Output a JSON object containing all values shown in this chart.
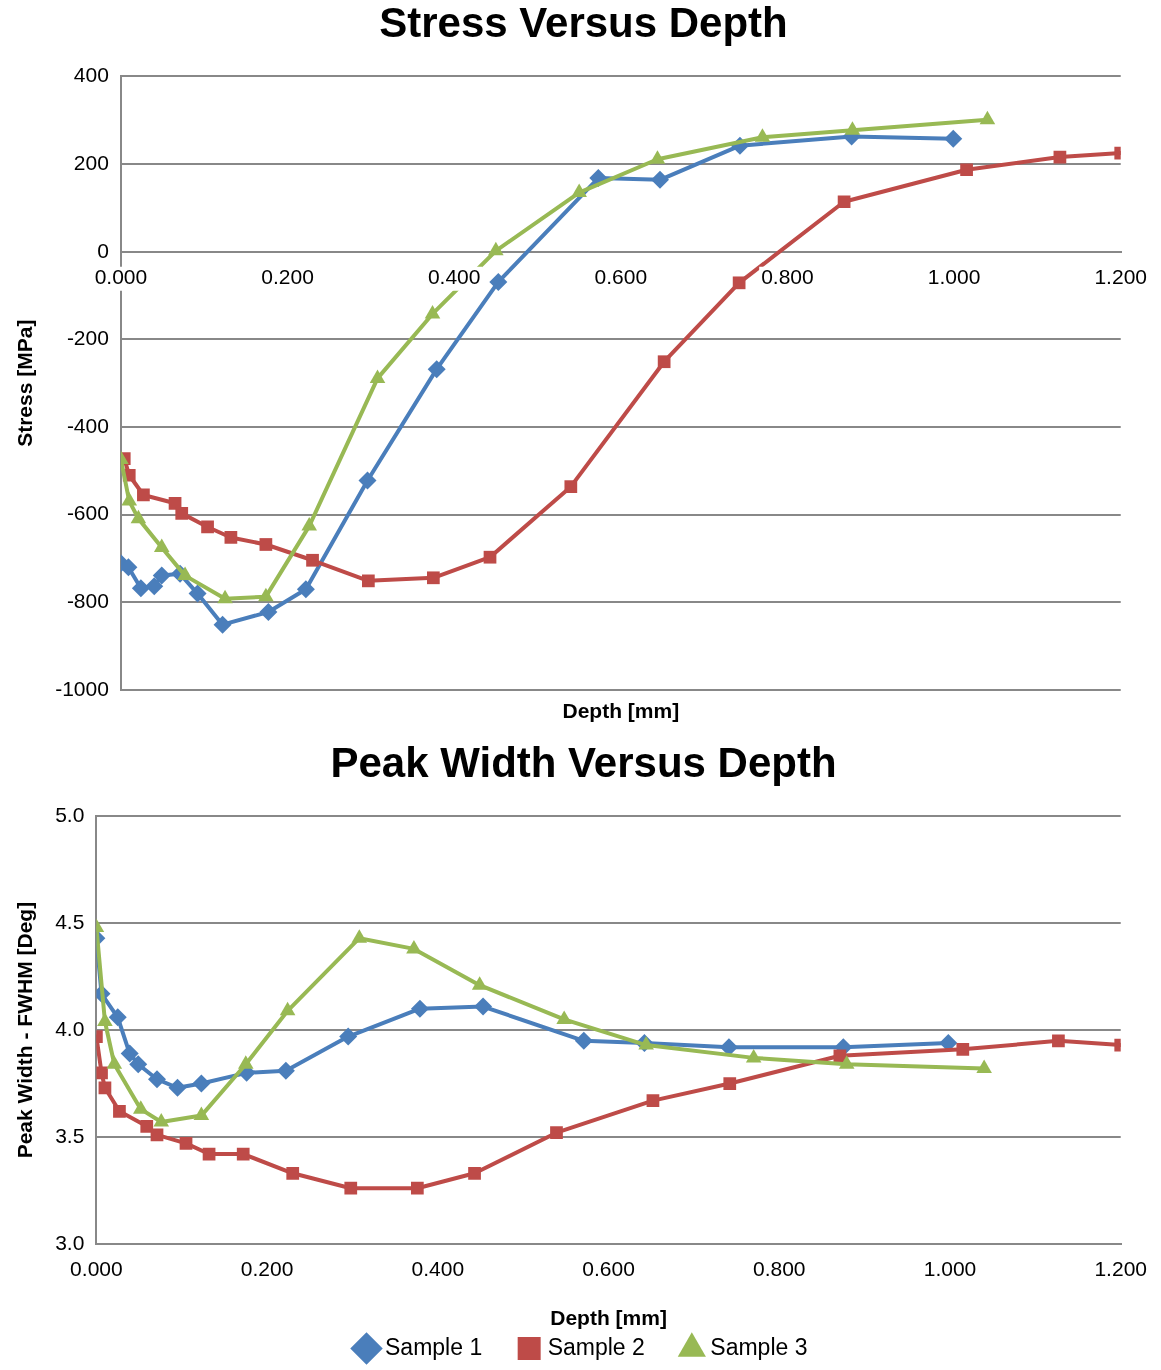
{
  "chart_data": [
    {
      "type": "line",
      "title": "Stress Versus Depth",
      "xlabel": "Depth [mm]",
      "ylabel": "Stress [MPa]",
      "xlim": [
        0,
        1.2
      ],
      "xticks": [
        {
          "value": 0,
          "label": "0.000"
        },
        {
          "value": 0.2,
          "label": "0.200"
        },
        {
          "value": 0.4,
          "label": "0.400"
        },
        {
          "value": 0.6,
          "label": "0.600"
        },
        {
          "value": 0.8,
          "label": "0.800"
        },
        {
          "value": 1.0,
          "label": "1.000"
        },
        {
          "value": 1.2,
          "label": "1.200"
        }
      ],
      "ylim": [
        -1000,
        400
      ],
      "yticks": [
        -1000,
        -800,
        -600,
        -400,
        -200,
        0,
        200,
        400
      ],
      "grid": "y",
      "legend": false,
      "series": [
        {
          "color": "#4a7ebb",
          "marker": "diamond",
          "x": [
            0,
            0.009,
            0.024,
            0.04,
            0.049,
            0.071,
            0.092,
            0.122,
            0.177,
            0.222,
            0.296,
            0.379,
            0.453,
            0.573,
            0.647,
            0.743,
            0.877,
            0.999
          ],
          "values": [
            -711,
            -720,
            -768,
            -763,
            -739,
            -735,
            -780,
            -851,
            -822,
            -770,
            -522,
            -268,
            -69,
            168,
            164,
            242,
            263,
            258
          ]
        },
        {
          "color": "#be4b48",
          "marker": "square",
          "x": [
            0.004,
            0.01,
            0.027,
            0.065,
            0.073,
            0.104,
            0.132,
            0.174,
            0.23,
            0.297,
            0.375,
            0.443,
            0.54,
            0.652,
            0.742,
            0.868,
            1.015,
            1.127,
            1.2
          ],
          "values": [
            -472,
            -510,
            -555,
            -574,
            -597,
            -628,
            -652,
            -668,
            -704,
            -751,
            -744,
            -697,
            -536,
            -251,
            -71,
            114,
            187,
            216,
            225
          ]
        },
        {
          "color": "#98b954",
          "marker": "triangle",
          "x": [
            0,
            0.01,
            0.021,
            0.049,
            0.077,
            0.125,
            0.174,
            0.226,
            0.308,
            0.374,
            0.45,
            0.55,
            0.644,
            0.77,
            0.878,
            1.04
          ],
          "values": [
            -474,
            -569,
            -609,
            -675,
            -739,
            -792,
            -787,
            -626,
            -289,
            -142,
            2,
            135,
            211,
            261,
            277,
            301
          ]
        }
      ]
    },
    {
      "type": "line",
      "title": "Peak Width Versus Depth",
      "xlabel": "Depth [mm]",
      "ylabel": "Peak Width - FWHM [Deg]",
      "xlim": [
        0,
        1.2
      ],
      "xticks": [
        {
          "value": 0,
          "label": "0.000"
        },
        {
          "value": 0.2,
          "label": "0.200"
        },
        {
          "value": 0.4,
          "label": "0.400"
        },
        {
          "value": 0.6,
          "label": "0.600"
        },
        {
          "value": 0.8,
          "label": "0.800"
        },
        {
          "value": 1.0,
          "label": "1.000"
        },
        {
          "value": 1.2,
          "label": "1.200"
        }
      ],
      "ylim": [
        3,
        5
      ],
      "yticks": [
        {
          "value": 3,
          "label": "3.0"
        },
        {
          "value": 3.5,
          "label": "3.5"
        },
        {
          "value": 4,
          "label": "4.0"
        },
        {
          "value": 4.5,
          "label": "4.5"
        },
        {
          "value": 5,
          "label": "5.0"
        }
      ],
      "grid": "y",
      "legend": "bottom",
      "series": [
        {
          "name": "Sample 1",
          "color": "#4a7ebb",
          "marker": "diamond",
          "x": [
            0,
            0.006,
            0.025,
            0.039,
            0.049,
            0.071,
            0.095,
            0.123,
            0.176,
            0.222,
            0.295,
            0.379,
            0.453,
            0.571,
            0.642,
            0.741,
            0.875,
            0.998
          ],
          "values": [
            4.43,
            4.17,
            4.06,
            3.89,
            3.84,
            3.77,
            3.73,
            3.75,
            3.8,
            3.81,
            3.97,
            4.1,
            4.11,
            3.95,
            3.94,
            3.92,
            3.92,
            3.94
          ]
        },
        {
          "name": "Sample 2",
          "color": "#be4b48",
          "marker": "square",
          "x": [
            0,
            0.006,
            0.01,
            0.027,
            0.059,
            0.071,
            0.105,
            0.132,
            0.172,
            0.23,
            0.298,
            0.376,
            0.443,
            0.539,
            0.652,
            0.742,
            0.871,
            1.015,
            1.127,
            1.2
          ],
          "values": [
            3.97,
            3.8,
            3.73,
            3.62,
            3.55,
            3.51,
            3.47,
            3.42,
            3.42,
            3.33,
            3.26,
            3.26,
            3.33,
            3.52,
            3.67,
            3.75,
            3.88,
            3.91,
            3.95,
            3.93
          ]
        },
        {
          "name": "Sample 3",
          "color": "#98b954",
          "marker": "triangle",
          "x": [
            0,
            0.01,
            0.021,
            0.052,
            0.076,
            0.123,
            0.175,
            0.224,
            0.308,
            0.372,
            0.449,
            0.548,
            0.644,
            0.77,
            0.879,
            1.04
          ],
          "values": [
            4.48,
            4.04,
            3.84,
            3.63,
            3.57,
            3.6,
            3.84,
            4.09,
            4.43,
            4.38,
            4.21,
            4.05,
            3.93,
            3.87,
            3.84,
            3.82
          ]
        }
      ]
    }
  ]
}
